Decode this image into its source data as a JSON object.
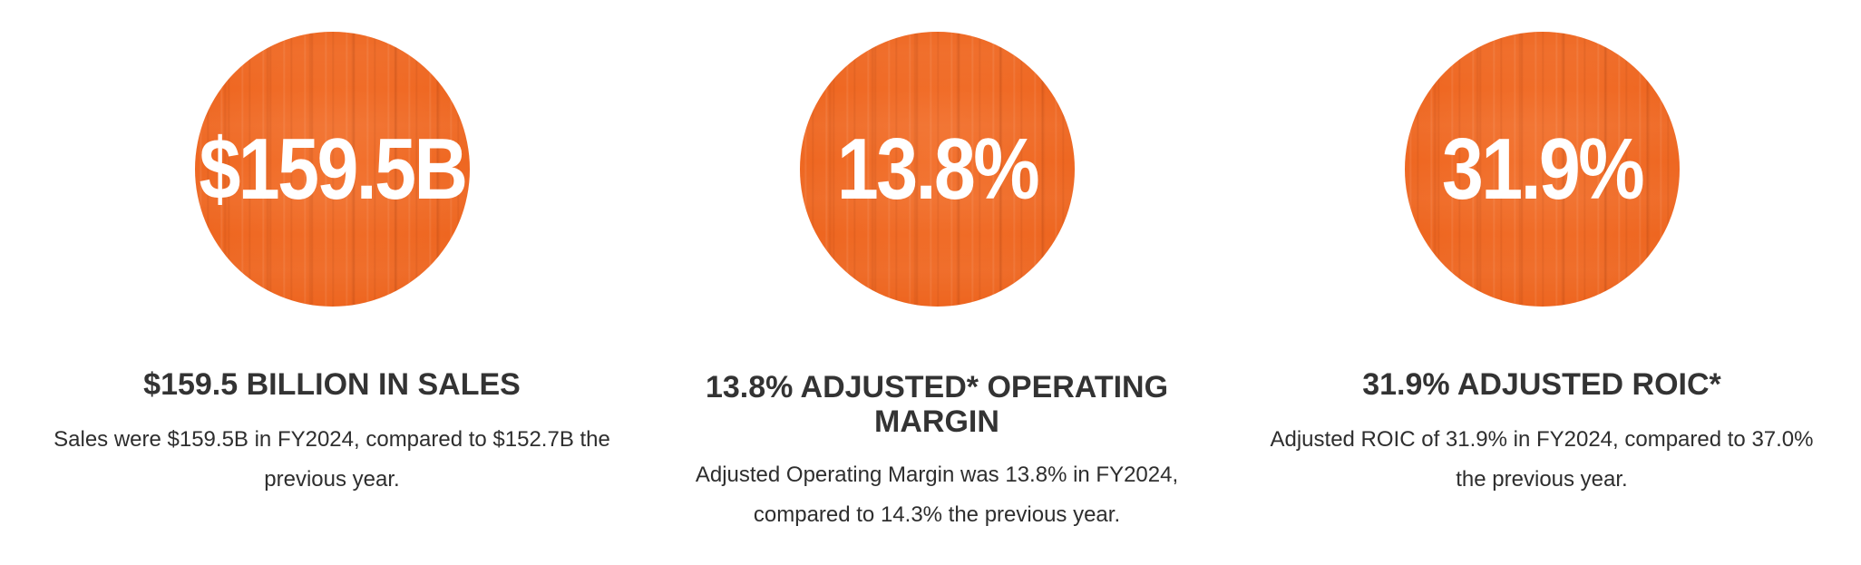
{
  "stats": [
    {
      "circle_value": "$159.5B",
      "heading": "$159.5 BILLION IN SALES",
      "description": "Sales were $159.5B in FY2024, compared to $152.7B the previous year."
    },
    {
      "circle_value": "13.8%",
      "heading": "13.8% ADJUSTED* OPERATING MARGIN",
      "description": "Adjusted Operating Margin was 13.8% in FY2024, compared to 14.3% the previous year."
    },
    {
      "circle_value": "31.9%",
      "heading": "31.9% ADJUSTED ROIC*",
      "description": "Adjusted ROIC of 31.9% in FY2024, compared to 37.0% the previous year."
    }
  ],
  "colors": {
    "circle": "#f06a23",
    "heading_text": "#333333",
    "body_text": "#2e2e2e",
    "background": "#ffffff"
  }
}
